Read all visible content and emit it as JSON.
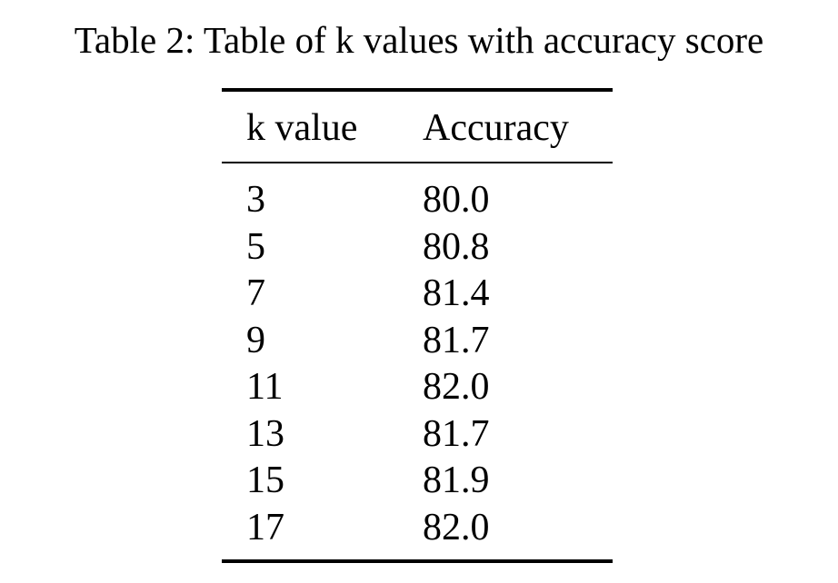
{
  "caption": "Table 2: Table of k values with accuracy score",
  "table": {
    "headers": [
      "k value",
      "Accuracy"
    ],
    "rows": [
      [
        "3",
        "80.0"
      ],
      [
        "5",
        "80.8"
      ],
      [
        "7",
        "81.4"
      ],
      [
        "9",
        "81.7"
      ],
      [
        "11",
        "82.0"
      ],
      [
        "13",
        "81.7"
      ],
      [
        "15",
        "81.9"
      ],
      [
        "17",
        "82.0"
      ]
    ]
  }
}
